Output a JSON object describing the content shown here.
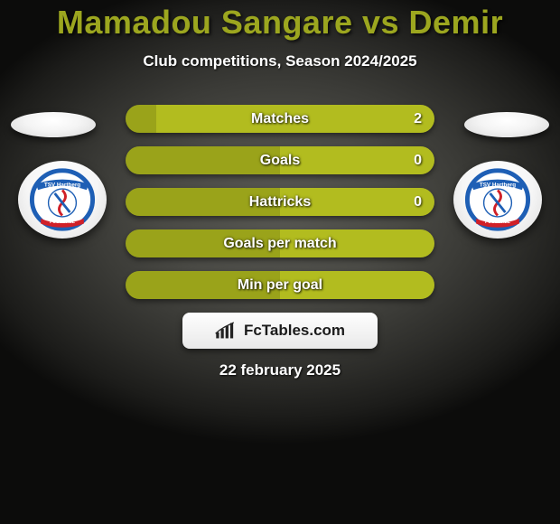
{
  "title": "Mamadou Sangare vs Demir",
  "subtitle": "Club competitions, Season 2024/2025",
  "date": "22 february 2025",
  "watermark_text": "FcTables.com",
  "colors": {
    "left_bar": "#9aa31a",
    "right_bar": "#b2bc1f",
    "title": "#9ca61f",
    "text": "#ffffff"
  },
  "club_badge": {
    "top_text": "TSV Hartberg",
    "bottom_text": "FUSSBALL",
    "ring_color": "#1e5fb5",
    "ribbon_color": "#d02028",
    "ball_color": "#ffffff"
  },
  "bars": [
    {
      "label": "Matches",
      "left_val": "",
      "right_val": "2",
      "left_pct": 10,
      "right_pct": 90
    },
    {
      "label": "Goals",
      "left_val": "",
      "right_val": "0",
      "left_pct": 50,
      "right_pct": 50
    },
    {
      "label": "Hattricks",
      "left_val": "",
      "right_val": "0",
      "left_pct": 50,
      "right_pct": 50
    },
    {
      "label": "Goals per match",
      "left_val": "",
      "right_val": "",
      "left_pct": 50,
      "right_pct": 50
    },
    {
      "label": "Min per goal",
      "left_val": "",
      "right_val": "",
      "left_pct": 50,
      "right_pct": 50
    }
  ]
}
